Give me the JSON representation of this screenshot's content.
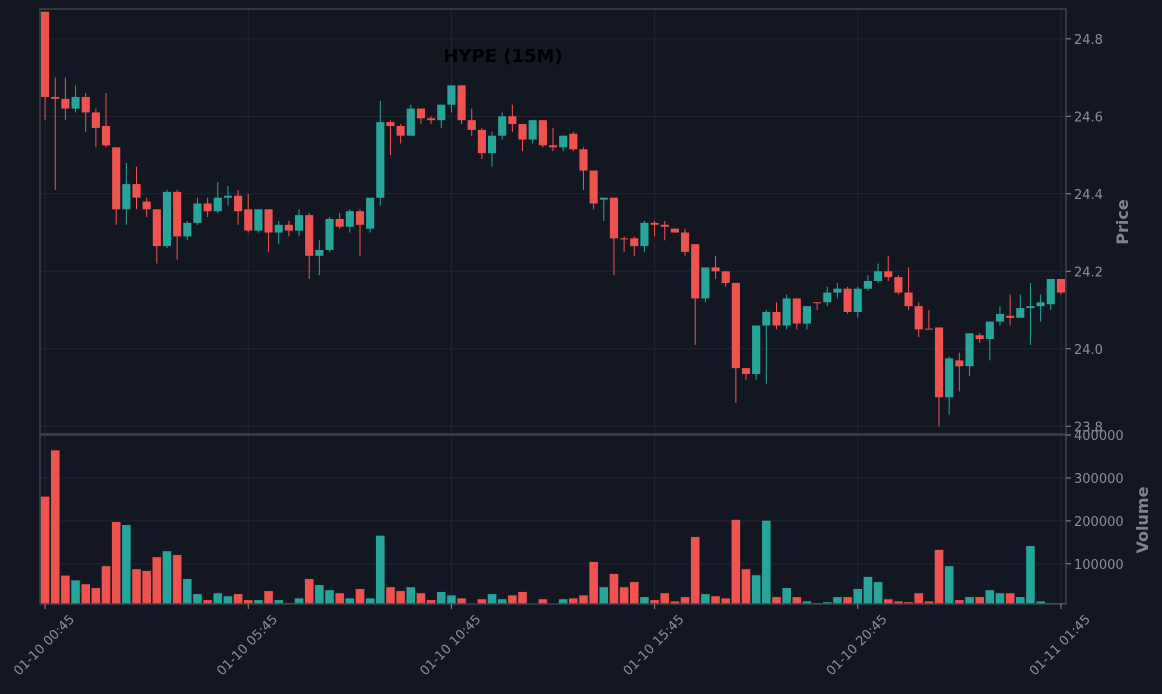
{
  "chart_data": [
    {
      "type": "candlestick",
      "title": "HYPE (15M)",
      "y_label": "Price",
      "up_color": "#26a69a",
      "down_color": "#ef5350",
      "ylim": [
        23.78,
        24.877
      ],
      "yticks": [
        23.8,
        {
          "value": 24,
          "label": "24.0"
        },
        24.2,
        24.4,
        24.6,
        24.8
      ],
      "grid": true,
      "categories": [
        "01-10 00:45",
        null,
        null,
        null,
        null,
        null,
        null,
        null,
        null,
        null,
        null,
        null,
        null,
        null,
        null,
        null,
        null,
        null,
        null,
        null,
        "01-10 05:45",
        null,
        null,
        null,
        null,
        null,
        null,
        null,
        null,
        null,
        null,
        null,
        null,
        null,
        null,
        null,
        null,
        null,
        null,
        null,
        "01-10 10:45",
        null,
        null,
        null,
        null,
        null,
        null,
        null,
        null,
        null,
        null,
        null,
        null,
        null,
        null,
        null,
        null,
        null,
        null,
        null,
        "01-10 15:45",
        null,
        null,
        null,
        null,
        null,
        null,
        null,
        null,
        null,
        null,
        null,
        null,
        null,
        null,
        null,
        null,
        null,
        null,
        null,
        "01-10 20:45",
        null,
        null,
        null,
        null,
        null,
        null,
        null,
        null,
        null,
        null,
        null,
        null,
        null,
        null,
        null,
        null,
        null,
        null,
        null,
        "01-11 01:45"
      ],
      "open": [
        24.87,
        24.65,
        24.645,
        24.62,
        24.65,
        24.61,
        24.575,
        24.52,
        24.36,
        24.425,
        24.38,
        24.36,
        24.265,
        24.405,
        24.29,
        24.325,
        24.375,
        24.355,
        24.39,
        24.395,
        24.36,
        24.305,
        24.36,
        24.3,
        24.32,
        24.305,
        24.345,
        24.24,
        24.255,
        24.335,
        24.315,
        24.355,
        24.31,
        24.39,
        24.585,
        24.575,
        24.55,
        24.62,
        24.595,
        24.59,
        24.63,
        24.68,
        24.59,
        24.565,
        24.505,
        24.55,
        24.6,
        24.58,
        24.54,
        24.59,
        24.525,
        24.52,
        24.555,
        24.515,
        24.46,
        24.385,
        24.39,
        24.285,
        24.285,
        24.265,
        24.325,
        24.32,
        24.31,
        24.3,
        24.27,
        24.13,
        24.21,
        24.2,
        24.17,
        23.95,
        23.935,
        24.06,
        24.095,
        24.06,
        24.13,
        24.065,
        24.12,
        24.12,
        24.145,
        24.155,
        24.095,
        24.155,
        24.175,
        24.2,
        24.185,
        24.145,
        24.11,
        24.052,
        24.055,
        23.875,
        23.97,
        23.955,
        24.035,
        24.025,
        24.07,
        24.085,
        24.08,
        24.105,
        24.11,
        24.115,
        24.18
      ],
      "high": [
        24.87,
        24.7,
        24.7,
        24.68,
        24.66,
        24.62,
        24.66,
        24.52,
        24.48,
        24.47,
        24.39,
        24.36,
        24.41,
        24.41,
        24.33,
        24.39,
        24.39,
        24.43,
        24.42,
        24.41,
        24.4,
        24.36,
        24.36,
        24.33,
        24.33,
        24.36,
        24.35,
        24.28,
        24.34,
        24.35,
        24.36,
        24.36,
        24.39,
        24.64,
        24.59,
        24.58,
        24.63,
        24.62,
        24.6,
        24.63,
        24.68,
        24.68,
        24.62,
        24.57,
        24.56,
        24.61,
        24.63,
        24.58,
        24.59,
        24.59,
        24.57,
        24.55,
        24.56,
        24.52,
        24.46,
        24.39,
        24.39,
        24.29,
        24.29,
        24.33,
        24.33,
        24.33,
        24.31,
        24.31,
        24.27,
        24.21,
        24.24,
        24.2,
        24.17,
        23.95,
        24.06,
        24.1,
        24.12,
        24.14,
        24.13,
        24.11,
        24.12,
        24.16,
        24.17,
        24.16,
        24.16,
        24.19,
        24.22,
        24.24,
        24.19,
        24.21,
        24.12,
        24.1,
        24.055,
        23.98,
        23.99,
        24.04,
        24.04,
        24.07,
        24.11,
        24.14,
        24.14,
        24.17,
        24.14,
        24.18,
        24.18
      ],
      "low": [
        24.59,
        24.41,
        24.59,
        24.61,
        24.56,
        24.52,
        24.52,
        24.32,
        24.32,
        24.36,
        24.34,
        24.22,
        24.26,
        24.23,
        24.28,
        24.32,
        24.34,
        24.35,
        24.37,
        24.32,
        24.3,
        24.3,
        24.25,
        24.27,
        24.29,
        24.29,
        24.18,
        24.19,
        24.25,
        24.31,
        24.3,
        24.24,
        24.3,
        24.37,
        24.5,
        24.53,
        24.55,
        24.58,
        24.58,
        24.57,
        24.61,
        24.58,
        24.55,
        24.49,
        24.47,
        24.54,
        24.56,
        24.51,
        24.53,
        24.52,
        24.51,
        24.51,
        24.51,
        24.41,
        24.36,
        24.33,
        24.19,
        24.25,
        24.24,
        24.25,
        24.29,
        24.28,
        24.3,
        24.24,
        24.01,
        24.12,
        24.18,
        24.16,
        23.86,
        23.92,
        23.92,
        23.91,
        24.05,
        24.05,
        24.05,
        24.05,
        24.1,
        24.11,
        24.13,
        24.09,
        24.08,
        24.15,
        24.17,
        24.175,
        24.14,
        24.1,
        24.03,
        24.05,
        23.8,
        23.83,
        23.89,
        23.93,
        24.015,
        23.97,
        24.06,
        24.06,
        24.08,
        24.01,
        24.07,
        24.1,
        24.14
      ],
      "close": [
        24.65,
        24.645,
        24.62,
        24.65,
        24.61,
        24.57,
        24.525,
        24.36,
        24.425,
        24.39,
        24.36,
        24.265,
        24.405,
        24.29,
        24.325,
        24.375,
        24.355,
        24.39,
        24.395,
        24.355,
        24.305,
        24.36,
        24.3,
        24.32,
        24.305,
        24.345,
        24.24,
        24.255,
        24.335,
        24.315,
        24.355,
        24.32,
        24.39,
        24.585,
        24.575,
        24.55,
        24.62,
        24.595,
        24.59,
        24.63,
        24.68,
        24.59,
        24.565,
        24.505,
        24.55,
        24.6,
        24.58,
        24.54,
        24.59,
        24.525,
        24.52,
        24.55,
        24.515,
        24.46,
        24.375,
        24.39,
        24.285,
        24.283,
        24.265,
        24.325,
        24.32,
        24.315,
        24.3,
        24.25,
        24.13,
        24.21,
        24.2,
        24.17,
        23.95,
        23.935,
        24.06,
        24.095,
        24.06,
        24.13,
        24.065,
        24.11,
        24.118,
        24.145,
        24.155,
        24.095,
        24.155,
        24.175,
        24.2,
        24.185,
        24.145,
        24.11,
        24.05,
        24.05,
        23.875,
        23.975,
        23.955,
        24.04,
        24.025,
        24.07,
        24.09,
        24.08,
        24.105,
        24.11,
        24.12,
        24.18,
        24.145
      ]
    },
    {
      "type": "volume",
      "y_label": "Volume",
      "ylim": [
        6250,
        400000
      ],
      "yticks": [
        100000,
        200000,
        300000,
        400000
      ],
      "grid": true,
      "values": [
        257000,
        365000,
        73000,
        62000,
        53000,
        44000,
        95000,
        198000,
        191000,
        88000,
        84000,
        116000,
        130000,
        121000,
        65000,
        30000,
        16000,
        32000,
        25000,
        30000,
        16000,
        16000,
        37000,
        16000,
        9000,
        20000,
        65000,
        51000,
        39000,
        32000,
        20000,
        42000,
        20000,
        166000,
        46000,
        37000,
        46000,
        32000,
        16000,
        35000,
        27000,
        20000,
        7000,
        18000,
        30000,
        18000,
        27000,
        35000,
        7000,
        18000,
        7000,
        18000,
        20000,
        27000,
        105000,
        46000,
        77000,
        46000,
        58000,
        23000,
        16000,
        32000,
        13000,
        23000,
        163000,
        30000,
        25000,
        20000,
        203000,
        88000,
        74000,
        201000,
        23000,
        44000,
        23000,
        13000,
        9000,
        11000,
        23000,
        23000,
        42000,
        70000,
        58000,
        18000,
        13000,
        11000,
        32000,
        13000,
        133000,
        95000,
        16000,
        23000,
        23000,
        39000,
        32000,
        32000,
        23000,
        142000,
        13000,
        9000,
        9000
      ]
    }
  ]
}
